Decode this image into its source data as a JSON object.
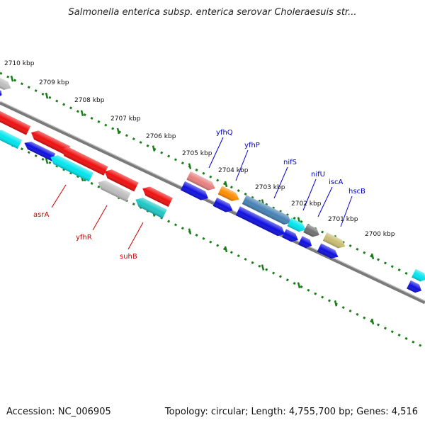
{
  "title": "Salmonella enterica subsp. enterica serovar Choleraesuis str...",
  "footer": {
    "accession": "Accession: NC_006905",
    "summary": "Topology: circular; Length: 4,755,700 bp; Genes: 4,516"
  },
  "colors": {
    "backbone": "#808080",
    "ticks": "#1a7d1a",
    "label_forward": "#0000cc",
    "label_reverse": "#cc0000"
  },
  "ticks": [
    {
      "label": "2710 kbp"
    },
    {
      "label": "2709 kbp"
    },
    {
      "label": "2708 kbp"
    },
    {
      "label": "2707 kbp"
    },
    {
      "label": "2706 kbp"
    },
    {
      "label": "2705 kbp"
    },
    {
      "label": "2704 kbp"
    },
    {
      "label": "2703 kbp"
    },
    {
      "label": "2702 kbp"
    },
    {
      "label": "2701 kbp"
    },
    {
      "label": "2700 kbp"
    }
  ],
  "gene_labels": [
    {
      "name": "yfhQ",
      "strand": "forward"
    },
    {
      "name": "yfhP",
      "strand": "forward"
    },
    {
      "name": "nifS",
      "strand": "forward"
    },
    {
      "name": "nifU",
      "strand": "forward"
    },
    {
      "name": "iscA",
      "strand": "forward"
    },
    {
      "name": "hscB",
      "strand": "forward"
    },
    {
      "name": "asrA",
      "strand": "reverse"
    },
    {
      "name": "yfhR",
      "strand": "reverse"
    },
    {
      "name": "suhB",
      "strand": "reverse"
    }
  ]
}
